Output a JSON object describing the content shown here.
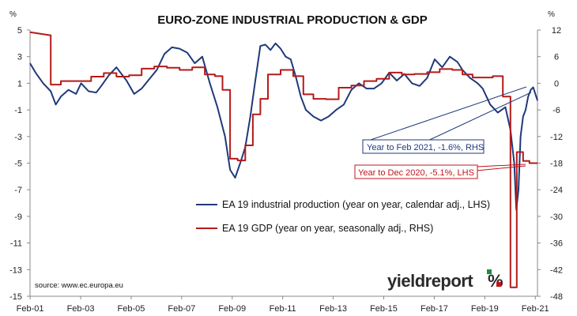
{
  "chart_data": {
    "type": "line",
    "title": "EURO-ZONE INDUSTRIAL PRODUCTION & GDP",
    "ylabel_left": "%",
    "ylabel_right": "%",
    "ylim_left": [
      -15,
      5
    ],
    "ylim_right": [
      -48,
      12
    ],
    "yticks_left": [
      "5",
      "3",
      "1",
      "-1",
      "-3",
      "-5",
      "-7",
      "-9",
      "-11",
      "-13",
      "-15"
    ],
    "yticks_right": [
      "12",
      "6",
      "0",
      "-6",
      "-12",
      "-18",
      "-24",
      "-30",
      "-36",
      "-42",
      "-48"
    ],
    "x_range": [
      2001.08,
      2021.17
    ],
    "xticks": [
      "Feb-01",
      "Feb-03",
      "Feb-05",
      "Feb-07",
      "Feb-09",
      "Feb-11",
      "Feb-13",
      "Feb-15",
      "Feb-17",
      "Feb-19",
      "Feb-21"
    ],
    "grid": false,
    "legend_position": "center-right",
    "series": [
      {
        "name": "EA 19 industrial production (year on year, calendar adj., LHS)",
        "axis": "left",
        "color": "#1f3a7a",
        "x": [
          2001.08,
          2001.3,
          2001.6,
          2001.9,
          2002.1,
          2002.3,
          2002.6,
          2002.9,
          2003.1,
          2003.4,
          2003.7,
          2003.9,
          2004.2,
          2004.5,
          2004.7,
          2004.9,
          2005.2,
          2005.5,
          2005.8,
          2006.1,
          2006.4,
          2006.7,
          2007.0,
          2007.3,
          2007.6,
          2007.9,
          2008.2,
          2008.5,
          2008.8,
          2009.0,
          2009.2,
          2009.4,
          2009.6,
          2009.8,
          2010.0,
          2010.2,
          2010.4,
          2010.6,
          2010.8,
          2011.0,
          2011.2,
          2011.4,
          2011.6,
          2011.8,
          2012.0,
          2012.3,
          2012.6,
          2012.9,
          2013.2,
          2013.5,
          2013.8,
          2014.1,
          2014.4,
          2014.7,
          2015.0,
          2015.3,
          2015.6,
          2015.9,
          2016.2,
          2016.5,
          2016.8,
          2017.1,
          2017.4,
          2017.7,
          2018.0,
          2018.2,
          2018.5,
          2018.8,
          2019.0,
          2019.3,
          2019.6,
          2019.9,
          2020.1,
          2020.25,
          2020.33,
          2020.42,
          2020.5,
          2020.6,
          2020.7,
          2020.8,
          2020.9,
          2021.0,
          2021.17
        ],
        "values": [
          2.5,
          1.8,
          1.0,
          0.4,
          -0.6,
          0.0,
          0.5,
          0.2,
          1.0,
          0.4,
          0.3,
          0.8,
          1.6,
          2.2,
          1.7,
          1.2,
          0.2,
          0.6,
          1.3,
          2.0,
          3.2,
          3.7,
          3.6,
          3.3,
          2.5,
          3.0,
          1.0,
          -0.8,
          -3.0,
          -5.5,
          -6.1,
          -5.0,
          -3.8,
          -1.5,
          1.2,
          3.8,
          3.9,
          3.5,
          4.0,
          3.6,
          3.0,
          2.8,
          1.5,
          0.0,
          -1.0,
          -1.5,
          -1.8,
          -1.5,
          -1.0,
          -0.6,
          0.5,
          1.0,
          0.6,
          0.6,
          1.0,
          1.8,
          1.2,
          1.7,
          1.0,
          0.8,
          1.4,
          2.8,
          2.2,
          3.0,
          2.6,
          2.0,
          1.4,
          1.0,
          0.6,
          -0.6,
          -1.2,
          -0.8,
          -2.5,
          -5.0,
          -8.5,
          -7.0,
          -3.0,
          -1.5,
          -1.0,
          0.0,
          0.5,
          0.7,
          -0.3
        ]
      },
      {
        "name": "EA 19 GDP (year on year, seasonally adj., RHS)",
        "axis": "right",
        "color": "#b41a1a",
        "x": [
          2001.08,
          2001.9,
          2001.9,
          2002.3,
          2002.3,
          2002.7,
          2002.7,
          2003.5,
          2003.5,
          2004.0,
          2004.0,
          2004.5,
          2004.5,
          2005.0,
          2005.0,
          2005.5,
          2005.5,
          2006.0,
          2006.0,
          2006.5,
          2006.5,
          2007.0,
          2007.0,
          2007.5,
          2007.5,
          2008.0,
          2008.0,
          2008.4,
          2008.4,
          2008.7,
          2008.7,
          2009.0,
          2009.0,
          2009.3,
          2009.3,
          2009.6,
          2009.6,
          2009.9,
          2009.9,
          2010.2,
          2010.2,
          2010.5,
          2010.5,
          2011.0,
          2011.0,
          2011.5,
          2011.5,
          2011.9,
          2011.9,
          2012.3,
          2012.3,
          2012.8,
          2012.8,
          2013.3,
          2013.3,
          2013.8,
          2013.8,
          2014.3,
          2014.3,
          2014.8,
          2014.8,
          2015.3,
          2015.3,
          2015.8,
          2015.8,
          2016.3,
          2016.3,
          2016.8,
          2016.8,
          2017.3,
          2017.3,
          2017.8,
          2017.8,
          2018.2,
          2018.2,
          2018.6,
          2018.6,
          2019.0,
          2019.0,
          2019.4,
          2019.4,
          2019.8,
          2019.8,
          2020.1,
          2020.1,
          2020.35,
          2020.35,
          2020.6,
          2020.6,
          2020.85,
          2020.85,
          2021.17
        ],
        "values": [
          11.5,
          10.8,
          -0.3,
          -0.3,
          0.5,
          0.5,
          0.5,
          0.5,
          1.5,
          1.5,
          2.3,
          2.3,
          1.5,
          1.5,
          1.8,
          1.8,
          3.3,
          3.3,
          3.8,
          3.8,
          3.5,
          3.5,
          3.0,
          3.0,
          3.6,
          3.6,
          2.0,
          2.0,
          1.6,
          1.6,
          -1.5,
          -1.5,
          -17.0,
          -17.0,
          -17.4,
          -17.4,
          -14.0,
          -14.0,
          -7.0,
          -7.0,
          -3.5,
          -3.5,
          2.0,
          2.0,
          3.0,
          3.0,
          1.6,
          1.6,
          -2.5,
          -2.5,
          -3.5,
          -3.5,
          -3.6,
          -3.6,
          -1.0,
          -1.0,
          -0.5,
          -0.5,
          0.5,
          0.5,
          1.0,
          1.0,
          2.4,
          2.4,
          2.0,
          2.0,
          2.1,
          2.1,
          2.5,
          2.5,
          3.2,
          3.2,
          3.0,
          3.0,
          2.0,
          2.0,
          1.3,
          1.3,
          1.3,
          1.3,
          1.6,
          1.6,
          -3.0,
          -3.0,
          -46.0,
          -46.0,
          -15.5,
          -15.5,
          -17.5,
          -17.5,
          -18.0,
          -18.0
        ]
      }
    ],
    "annotations": [
      {
        "text": "Year to Feb 2021, -1.6%, RHS",
        "color": "#1f3a7a"
      },
      {
        "text": "Year to Dec 2020, -5.1%, LHS",
        "color": "#c0141c"
      }
    ],
    "source": "source: www.ec.europa.eu"
  },
  "logo": {
    "text": "yieldreport",
    "mark": "%"
  },
  "colors": {
    "ip_line": "#1f3a7a",
    "gdp_line": "#b41a1a",
    "axis": "#888888"
  }
}
